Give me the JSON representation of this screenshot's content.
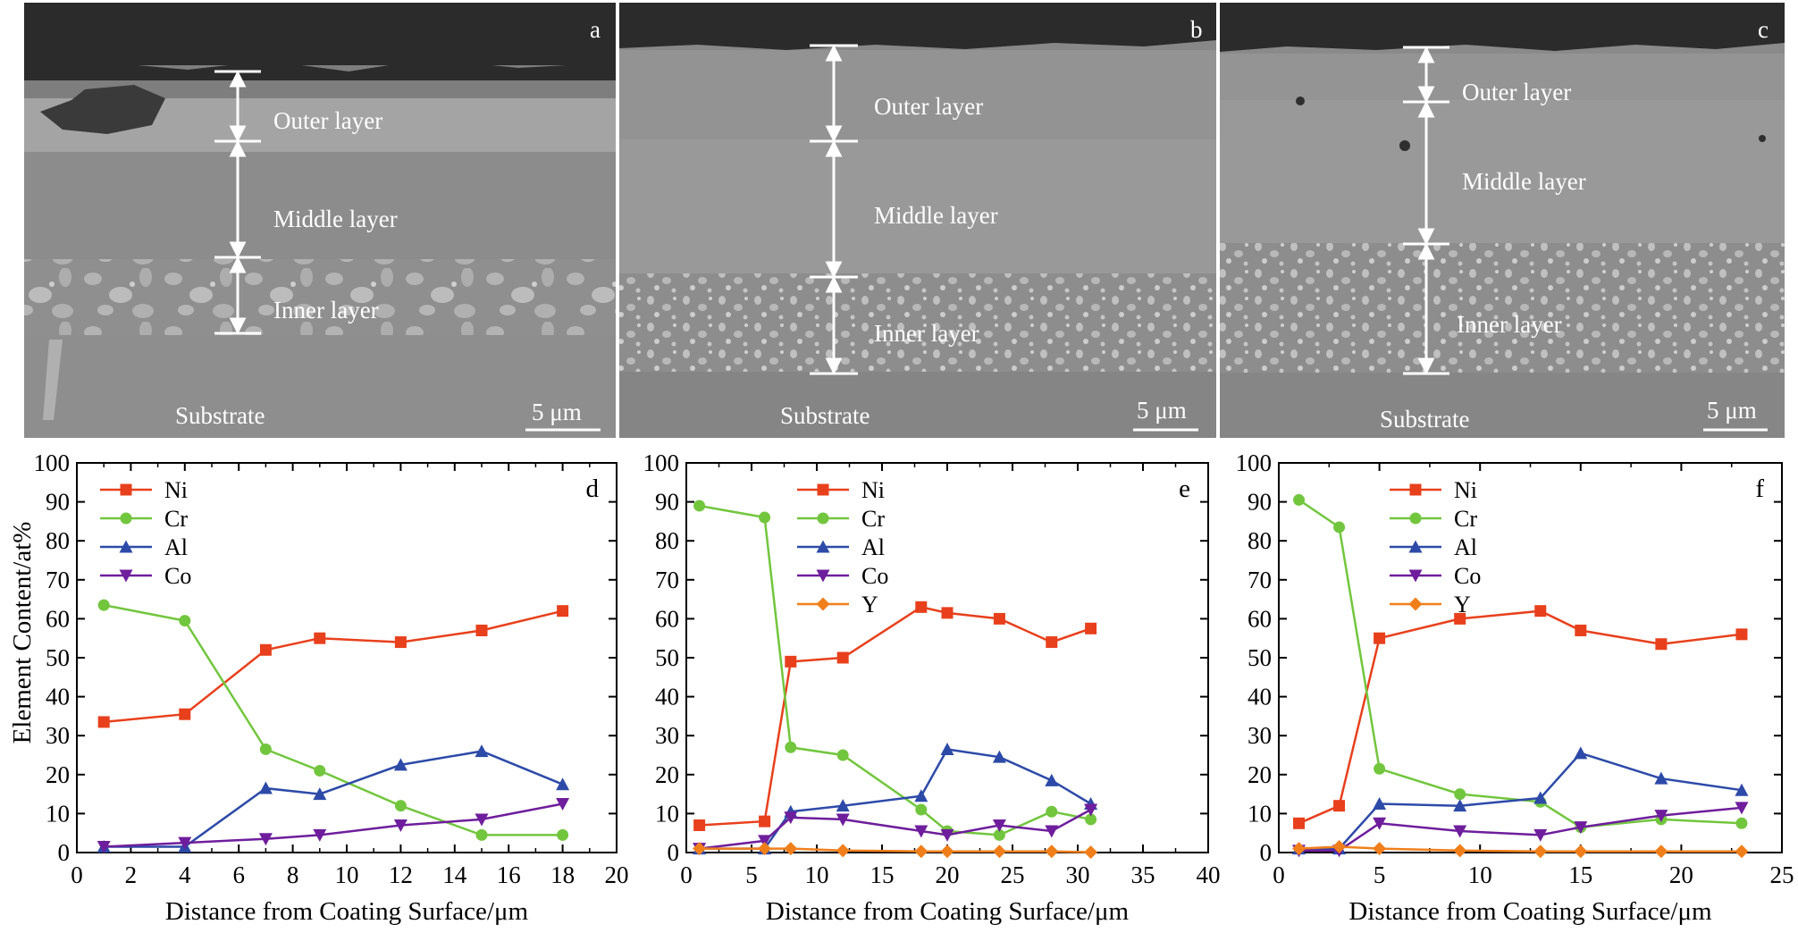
{
  "colors": {
    "Ni": "#e8401c",
    "Cr": "#72c63e",
    "Al": "#2d4aa8",
    "Co": "#6e1e9c",
    "Y": "#f07f1b"
  },
  "micrographs": [
    {
      "letter": "a",
      "layers": [
        "Outer layer",
        "Middle layer",
        "Inner layer"
      ],
      "substrate": "Substrate",
      "scale": "5 μm"
    },
    {
      "letter": "b",
      "layers": [
        "Outer layer",
        "Middle layer",
        "Inner layer"
      ],
      "substrate": "Substrate",
      "scale": "5 μm"
    },
    {
      "letter": "c",
      "layers": [
        "Outer layer",
        "Middle layer",
        "Inner layer"
      ],
      "substrate": "Substrate",
      "scale": "5 μm"
    }
  ],
  "ylabel": "Element Content/at%",
  "chart_data": [
    {
      "type": "line",
      "letter": "d",
      "xlabel": "Distance from Coating Surface/μm",
      "ylabel": "Element Content/at%",
      "xlim": [
        0,
        20
      ],
      "ylim": [
        0,
        100
      ],
      "xticks": [
        0,
        2,
        4,
        6,
        8,
        10,
        12,
        14,
        16,
        18,
        20
      ],
      "yticks": [
        0,
        10,
        20,
        30,
        40,
        50,
        60,
        70,
        80,
        90,
        100
      ],
      "x": [
        1,
        4,
        7,
        9,
        12,
        15,
        18
      ],
      "legend": "top-left",
      "series": [
        {
          "name": "Ni",
          "marker": "square",
          "values": [
            33.5,
            35.5,
            52,
            55,
            54,
            57,
            62
          ]
        },
        {
          "name": "Cr",
          "marker": "circle",
          "values": [
            63.5,
            59.5,
            26.5,
            21,
            12,
            4.5,
            4.5
          ]
        },
        {
          "name": "Al",
          "marker": "triangle-up",
          "values": [
            1.5,
            1.5,
            16.5,
            15,
            22.5,
            26,
            17.5
          ]
        },
        {
          "name": "Co",
          "marker": "triangle-down",
          "values": [
            1.5,
            2.5,
            3.5,
            4.5,
            7,
            8.5,
            12.5
          ]
        }
      ]
    },
    {
      "type": "line",
      "letter": "e",
      "xlabel": "Distance from Coating Surface/μm",
      "ylabel": "",
      "xlim": [
        0,
        40
      ],
      "ylim": [
        0,
        100
      ],
      "xticks": [
        0,
        5,
        10,
        15,
        20,
        25,
        30,
        35,
        40
      ],
      "yticks": [
        0,
        10,
        20,
        30,
        40,
        50,
        60,
        70,
        80,
        90,
        100
      ],
      "x": [
        1,
        6,
        8,
        12,
        18,
        20,
        24,
        28,
        31
      ],
      "legend": "top-left",
      "series": [
        {
          "name": "Ni",
          "marker": "square",
          "values": [
            7,
            8,
            49,
            50,
            63,
            61.5,
            60,
            54,
            57.5
          ]
        },
        {
          "name": "Cr",
          "marker": "circle",
          "values": [
            89,
            86,
            27,
            25,
            11,
            5.5,
            4.5,
            10.5,
            8.5
          ]
        },
        {
          "name": "Al",
          "marker": "triangle-up",
          "values": [
            1,
            1,
            10.5,
            12,
            14.5,
            26.5,
            24.5,
            18.5,
            12.5
          ]
        },
        {
          "name": "Co",
          "marker": "triangle-down",
          "values": [
            1,
            3,
            9,
            8.5,
            5.5,
            4.5,
            7,
            5.5,
            11
          ]
        },
        {
          "name": "Y",
          "marker": "diamond",
          "values": [
            1,
            1,
            1,
            0.5,
            0.3,
            0.3,
            0.3,
            0.3,
            0.1
          ]
        }
      ]
    },
    {
      "type": "line",
      "letter": "f",
      "xlabel": "Distance from Coating Surface/μm",
      "ylabel": "",
      "xlim": [
        0,
        25
      ],
      "ylim": [
        0,
        100
      ],
      "xticks": [
        0,
        5,
        10,
        15,
        20,
        25
      ],
      "yticks": [
        0,
        10,
        20,
        30,
        40,
        50,
        60,
        70,
        80,
        90,
        100
      ],
      "x": [
        1,
        3,
        5,
        9,
        13,
        15,
        19,
        23
      ],
      "legend": "top-left",
      "series": [
        {
          "name": "Ni",
          "marker": "square",
          "values": [
            7.5,
            12,
            55,
            60,
            62,
            57,
            53.5,
            56
          ]
        },
        {
          "name": "Cr",
          "marker": "circle",
          "values": [
            90.5,
            83.5,
            21.5,
            15,
            13,
            6.5,
            8.5,
            7.5
          ]
        },
        {
          "name": "Al",
          "marker": "triangle-up",
          "values": [
            1,
            1,
            12.5,
            12,
            14,
            25.5,
            19,
            16
          ]
        },
        {
          "name": "Co",
          "marker": "triangle-down",
          "values": [
            0.5,
            0.5,
            7.5,
            5.5,
            4.5,
            6.5,
            9.5,
            11.5
          ]
        },
        {
          "name": "Y",
          "marker": "diamond",
          "values": [
            1,
            1.5,
            1,
            0.5,
            0.3,
            0.3,
            0.3,
            0.3
          ]
        }
      ]
    }
  ]
}
